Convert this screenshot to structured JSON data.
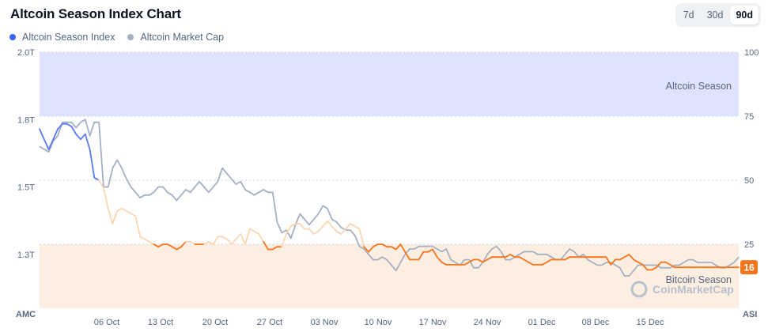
{
  "header": {
    "title": "Altcoin Season Index Chart",
    "legend": [
      {
        "label": "Altcoin Season Index",
        "color": "#3861fb"
      },
      {
        "label": "Altcoin Market Cap",
        "color": "#a6b0c3"
      }
    ],
    "ranges": [
      "7d",
      "30d",
      "90d"
    ],
    "active_range": "90d"
  },
  "chart_data": {
    "type": "line",
    "left_axis": {
      "title": "AMC",
      "ticks": [
        "2.0T",
        "1.8T",
        "1.5T",
        "1.3T"
      ]
    },
    "right_axis": {
      "title": "ASI",
      "ticks": [
        "100",
        "75",
        "50",
        "25"
      ],
      "ylim": [
        0,
        100
      ]
    },
    "x_ticks": [
      "06 Oct",
      "13 Oct",
      "20 Oct",
      "27 Oct",
      "03 Nov",
      "10 Nov",
      "17 Nov",
      "24 Nov",
      "01 Dec",
      "08 Dec",
      "15 Dec"
    ],
    "zones": [
      {
        "label": "Altcoin Season",
        "range": [
          75,
          100
        ],
        "color": "#dfe3fe"
      },
      {
        "label": "Bitcoin Season",
        "range": [
          0,
          25
        ],
        "color": "#fdeee2"
      }
    ],
    "current_value_badge": "16",
    "colors": {
      "index_high": "#5b78fa",
      "index_mid": "#fdd5b0",
      "index_low": "#f7751b",
      "market_cap": "#a6b0c3"
    },
    "series": [
      {
        "name": "Altcoin Season Index",
        "values": [
          70,
          66,
          62,
          66,
          70,
          72,
          72,
          71,
          68,
          66,
          68,
          62,
          51,
          50,
          47,
          39,
          33,
          38,
          39,
          38,
          37,
          36,
          28,
          27,
          26,
          25,
          24,
          25,
          25,
          24,
          23,
          24,
          26,
          26,
          25,
          25,
          25,
          26,
          25,
          28,
          28,
          27,
          25,
          27,
          29,
          25,
          31,
          30,
          29,
          26,
          23,
          23,
          24,
          24,
          29,
          32,
          33,
          33,
          31,
          31,
          29,
          30,
          32,
          34,
          32,
          30,
          29,
          31,
          33,
          32,
          31,
          24,
          22,
          24,
          25,
          25,
          24,
          24,
          23,
          25,
          22,
          19,
          19,
          19,
          22,
          22,
          23,
          20,
          18,
          17,
          17,
          17,
          17,
          17,
          18,
          19,
          19,
          18,
          19,
          20,
          20,
          20,
          20,
          21,
          20,
          20,
          19,
          18,
          17,
          17,
          17,
          18,
          19,
          19,
          19,
          19,
          20,
          20,
          20,
          20,
          20,
          20,
          20,
          20,
          20,
          17,
          19,
          19,
          20,
          21,
          19,
          18,
          17,
          15,
          15,
          16,
          18,
          18,
          17,
          16,
          16,
          16,
          16,
          16,
          16,
          16,
          16,
          16,
          16,
          16,
          16,
          16,
          16,
          16
        ]
      },
      {
        "name": "Altcoin Market Cap",
        "values": [
          1.7,
          1.69,
          1.68,
          1.72,
          1.74,
          1.79,
          1.79,
          1.79,
          1.77,
          1.79,
          1.8,
          1.74,
          1.79,
          1.79,
          1.55,
          1.55,
          1.62,
          1.65,
          1.62,
          1.58,
          1.55,
          1.53,
          1.51,
          1.52,
          1.52,
          1.53,
          1.55,
          1.55,
          1.53,
          1.52,
          1.5,
          1.52,
          1.54,
          1.53,
          1.55,
          1.57,
          1.55,
          1.53,
          1.55,
          1.57,
          1.62,
          1.6,
          1.58,
          1.56,
          1.57,
          1.54,
          1.53,
          1.52,
          1.53,
          1.54,
          1.53,
          1.53,
          1.42,
          1.38,
          1.39,
          1.36,
          1.41,
          1.45,
          1.43,
          1.41,
          1.43,
          1.45,
          1.48,
          1.47,
          1.43,
          1.42,
          1.4,
          1.39,
          1.39,
          1.37,
          1.33,
          1.32,
          1.3,
          1.28,
          1.28,
          1.29,
          1.28,
          1.26,
          1.24,
          1.27,
          1.3,
          1.32,
          1.32,
          1.33,
          1.33,
          1.33,
          1.33,
          1.32,
          1.31,
          1.32,
          1.28,
          1.27,
          1.26,
          1.28,
          1.28,
          1.25,
          1.25,
          1.27,
          1.3,
          1.32,
          1.33,
          1.31,
          1.28,
          1.28,
          1.29,
          1.3,
          1.31,
          1.31,
          1.31,
          1.3,
          1.3,
          1.3,
          1.29,
          1.28,
          1.28,
          1.3,
          1.32,
          1.31,
          1.29,
          1.3,
          1.28,
          1.27,
          1.26,
          1.26,
          1.27,
          1.27,
          1.26,
          1.25,
          1.22,
          1.22,
          1.24,
          1.26,
          1.26,
          1.26,
          1.26,
          1.26,
          1.25,
          1.25,
          1.25,
          1.26,
          1.26,
          1.27,
          1.28,
          1.28,
          1.27,
          1.27,
          1.27,
          1.27,
          1.26,
          1.25,
          1.25,
          1.26,
          1.27,
          1.29
        ]
      }
    ],
    "watermark": "CoinMarketCap",
    "grid": true
  }
}
